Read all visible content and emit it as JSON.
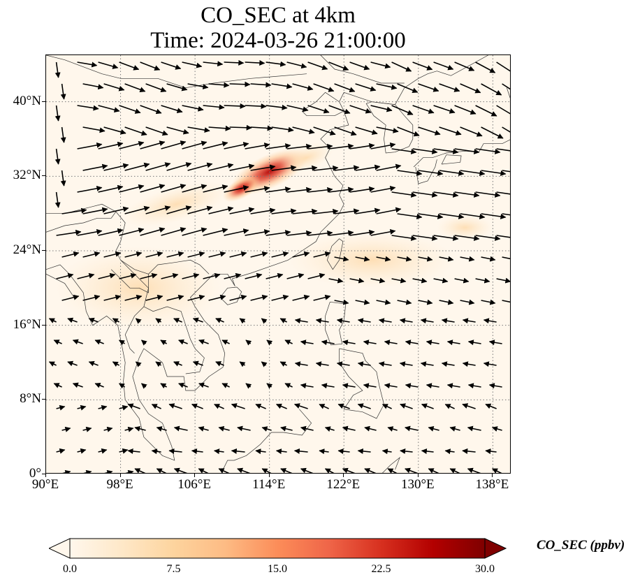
{
  "title_line1": "CO_SEC at 4km",
  "title_line2": "Time: 2024-03-26 21:00:00",
  "map": {
    "lon_range": [
      90,
      140
    ],
    "lat_range": [
      0,
      45
    ],
    "lon_ticks": [
      "90°E",
      "98°E",
      "106°E",
      "114°E",
      "122°E",
      "130°E",
      "138°E"
    ],
    "lat_ticks": [
      "0°",
      "8°N",
      "16°N",
      "24°N",
      "32°N",
      "40°N"
    ],
    "gridline_style": "dotted",
    "background_color": "#fff7ec",
    "plume_color": "#b30000"
  },
  "colorbar": {
    "label": "CO_SEC (ppbv)",
    "ticks": [
      "0.0",
      "7.5",
      "15.0",
      "22.5",
      "30.0"
    ],
    "range": [
      0,
      30
    ],
    "extend": "both",
    "colormap": [
      "#fff7ec",
      "#fee8c8",
      "#fdd49e",
      "#fdbb84",
      "#fc8d59",
      "#ef6548",
      "#d7301f",
      "#b30000",
      "#7f0000"
    ]
  }
}
